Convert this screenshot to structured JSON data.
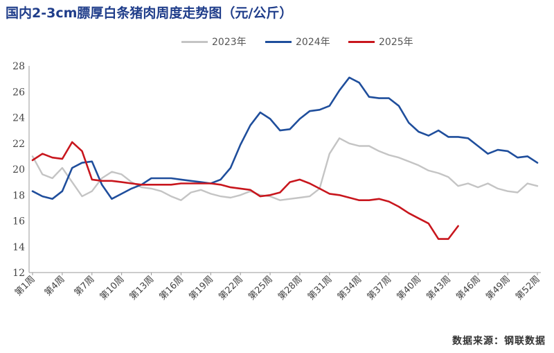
{
  "title": "国内2-3cm膘厚白条猪肉周度走势图（元/公斤）",
  "source": "数据来源：钢联数据",
  "chart_data": {
    "type": "line",
    "ylim": [
      12,
      28
    ],
    "yticks": [
      12,
      14,
      16,
      18,
      20,
      22,
      24,
      26,
      28
    ],
    "x_count": 52,
    "x_tick_labels": [
      "第1周",
      "第4周",
      "第7周",
      "第10周",
      "第13周",
      "第16周",
      "第19周",
      "第22周",
      "第25周",
      "第28周",
      "第31周",
      "第34周",
      "第37周",
      "第40周",
      "第43周",
      "第46周",
      "第49周",
      "第52周"
    ],
    "x_tick_weeks": [
      1,
      4,
      7,
      10,
      13,
      16,
      19,
      22,
      25,
      28,
      31,
      34,
      37,
      40,
      43,
      46,
      49,
      52
    ],
    "legend_position": "top-center",
    "series": [
      {
        "name": "2023年",
        "color": "#c4c4c4",
        "values": [
          21.0,
          19.6,
          19.3,
          20.1,
          19.0,
          17.9,
          18.3,
          19.3,
          19.8,
          19.6,
          19.0,
          18.6,
          18.5,
          18.3,
          17.9,
          17.6,
          18.2,
          18.4,
          18.1,
          17.9,
          17.8,
          18.0,
          18.3,
          18.0,
          17.9,
          17.6,
          17.7,
          17.8,
          17.9,
          18.5,
          21.2,
          22.4,
          22.0,
          21.8,
          21.8,
          21.4,
          21.1,
          20.9,
          20.6,
          20.3,
          19.9,
          19.7,
          19.4,
          18.7,
          18.9,
          18.6,
          18.9,
          18.5,
          18.3,
          18.2,
          18.9,
          18.7
        ]
      },
      {
        "name": "2024年",
        "color": "#1f4e9c",
        "values": [
          18.3,
          17.9,
          17.7,
          18.3,
          20.1,
          20.5,
          20.6,
          18.8,
          17.7,
          18.1,
          18.5,
          18.8,
          19.3,
          19.3,
          19.3,
          19.2,
          19.1,
          19.0,
          18.9,
          19.2,
          20.1,
          21.9,
          23.4,
          24.4,
          23.9,
          23.0,
          23.1,
          23.9,
          24.5,
          24.6,
          24.9,
          26.1,
          27.1,
          26.7,
          25.6,
          25.5,
          25.5,
          24.9,
          23.6,
          22.9,
          22.6,
          23.0,
          22.5,
          22.5,
          22.4,
          21.8,
          21.2,
          21.5,
          21.4,
          20.9,
          21.0,
          20.5
        ]
      },
      {
        "name": "2025年",
        "color": "#c8161d",
        "values": [
          20.7,
          21.2,
          20.9,
          20.8,
          22.1,
          21.4,
          19.2,
          19.1,
          19.1,
          19.0,
          18.9,
          18.8,
          18.8,
          18.8,
          18.8,
          18.9,
          18.9,
          18.9,
          18.9,
          18.8,
          18.6,
          18.5,
          18.4,
          17.9,
          18.0,
          18.2,
          19.0,
          19.2,
          18.9,
          18.5,
          18.1,
          18.0,
          17.8,
          17.6,
          17.6,
          17.7,
          17.5,
          17.1,
          16.6,
          16.2,
          15.8,
          14.6,
          14.6,
          15.6
        ]
      }
    ]
  }
}
